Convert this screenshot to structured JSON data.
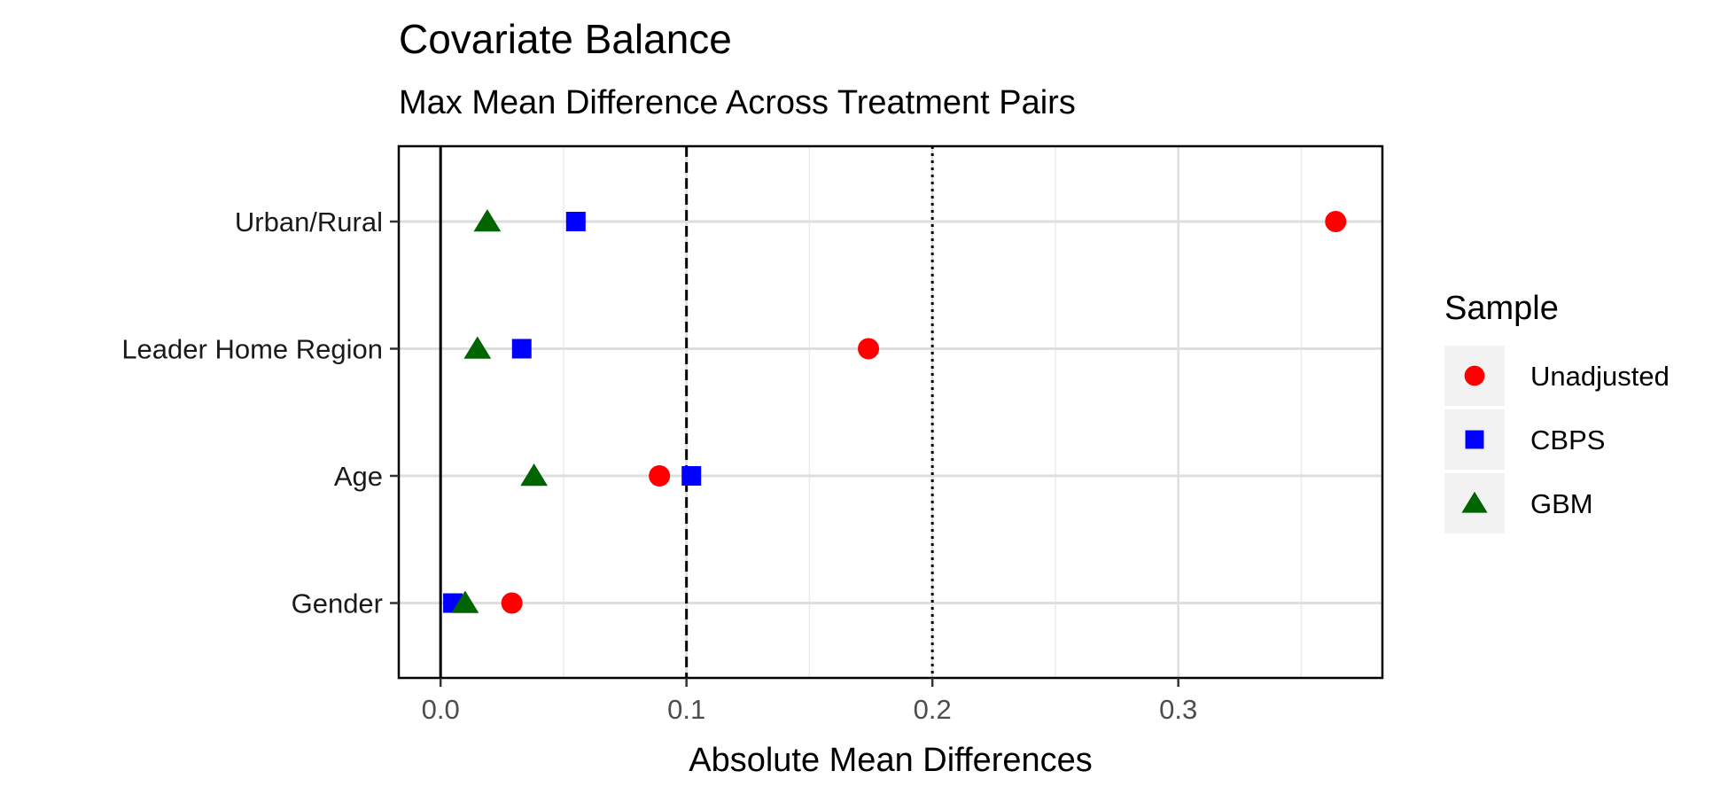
{
  "chart_data": {
    "type": "scatter",
    "title": "Covariate Balance",
    "subtitle": "Max Mean Difference Across Treatment Pairs",
    "xlabel": "Absolute Mean Differences",
    "ylabel": "",
    "xlim": [
      -0.017,
      0.383
    ],
    "x_ticks": [
      0.0,
      0.1,
      0.2,
      0.3
    ],
    "x_tick_labels": [
      "0.0",
      "0.1",
      "0.2",
      "0.3"
    ],
    "categories": [
      "Urban/Rural",
      "Leader Home Region",
      "Age",
      "Gender"
    ],
    "reference_lines": [
      {
        "x": 0.0,
        "style": "solid"
      },
      {
        "x": 0.1,
        "style": "dashed"
      },
      {
        "x": 0.2,
        "style": "dotted"
      }
    ],
    "grid": true,
    "legend": {
      "title": "Sample",
      "position": "right"
    },
    "series": [
      {
        "name": "Unadjusted",
        "shape": "circle",
        "color": "#ff0000",
        "values": [
          0.364,
          0.174,
          0.089,
          0.029
        ]
      },
      {
        "name": "CBPS",
        "shape": "square",
        "color": "#0000ff",
        "values": [
          0.055,
          0.033,
          0.102,
          0.005
        ]
      },
      {
        "name": "GBM",
        "shape": "triangle",
        "color": "#006400",
        "values": [
          0.019,
          0.015,
          0.038,
          0.01
        ]
      }
    ]
  }
}
